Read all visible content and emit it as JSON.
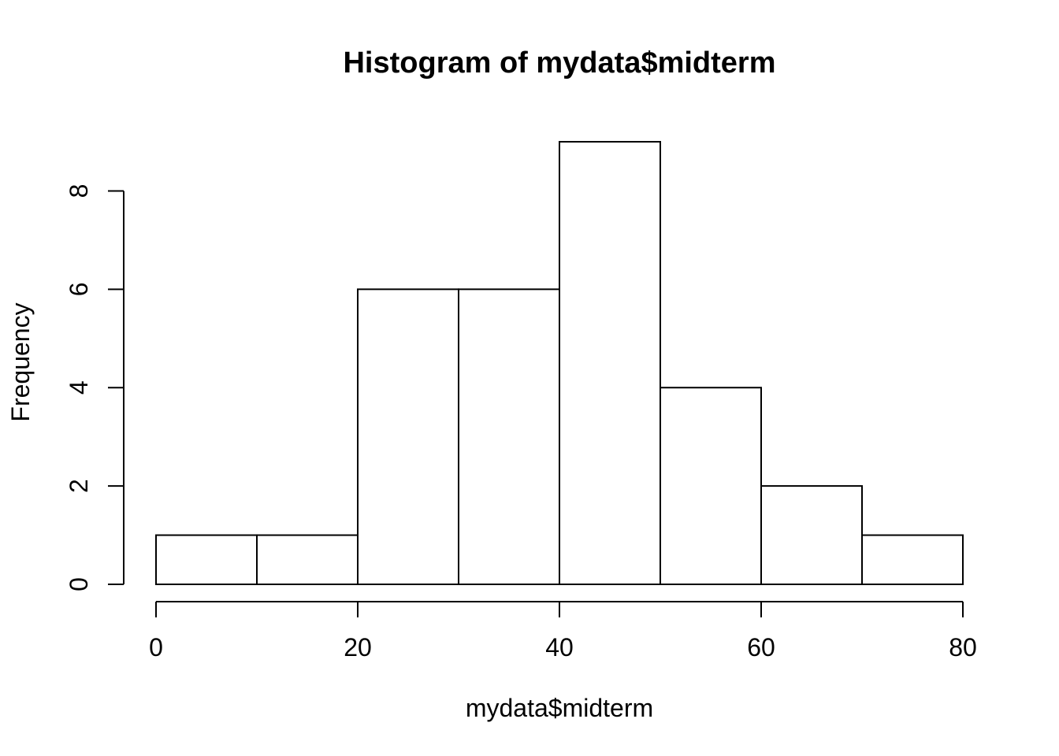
{
  "chart_data": {
    "type": "bar",
    "title": "Histogram of mydata$midterm",
    "xlabel": "mydata$midterm",
    "ylabel": "Frequency",
    "bins": [
      {
        "start": 0,
        "end": 10,
        "count": 1
      },
      {
        "start": 10,
        "end": 20,
        "count": 1
      },
      {
        "start": 20,
        "end": 30,
        "count": 6
      },
      {
        "start": 30,
        "end": 40,
        "count": 6
      },
      {
        "start": 40,
        "end": 50,
        "count": 9
      },
      {
        "start": 50,
        "end": 60,
        "count": 4
      },
      {
        "start": 60,
        "end": 70,
        "count": 2
      },
      {
        "start": 70,
        "end": 80,
        "count": 1
      }
    ],
    "xlim": [
      0,
      80
    ],
    "ylim": [
      0,
      9
    ],
    "x_ticks": [
      0,
      20,
      40,
      60,
      80
    ],
    "y_ticks": [
      0,
      2,
      4,
      6,
      8
    ],
    "grid": false,
    "bar_fill": "#ffffff",
    "bar_stroke": "#000000"
  }
}
